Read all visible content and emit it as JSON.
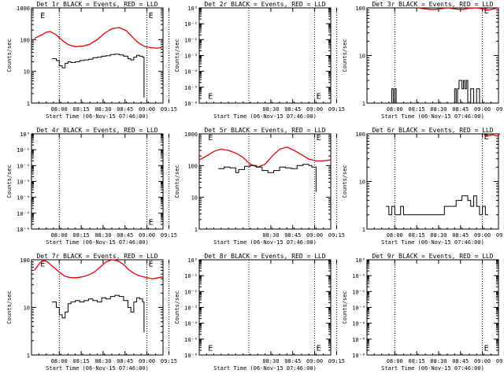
{
  "colors": {
    "events": "#000000",
    "lld": "#e00000",
    "axis": "#000000",
    "background": "#ffffff"
  },
  "shared": {
    "xlabel": "Start Time (06-Nov-15 07:46:00)",
    "ylabel": "Counts/sec",
    "marker": "E",
    "x_range_minutes": [
      -5,
      85
    ],
    "x_tick_minutes": [
      14,
      29,
      44,
      59,
      74,
      89
    ],
    "x_tick_labels": [
      "08:00",
      "08:15",
      "08:30",
      "08:45",
      "09:00",
      "09:15"
    ],
    "y_tick_labels_standard": [
      "1",
      "10",
      "100",
      "1000"
    ],
    "y_tick_labels_small": [
      "10⁰",
      "10⁻¹",
      "10⁻²",
      "10⁻³",
      "10⁻⁴",
      "10⁻⁵",
      "10⁻⁶"
    ]
  },
  "chart_data": [
    {
      "id": "1r",
      "title": "Det 1r BLACK = Events, RED = LLD",
      "type": "line",
      "ylog": true,
      "ylim": [
        1,
        1000
      ],
      "yticks": "standard",
      "x_tick_labels": [
        "08:00",
        "08:15",
        "08:30",
        "08:45",
        "09:00",
        "09:15"
      ],
      "dotted_lines_minutes": [
        14,
        74,
        89
      ],
      "marker": {
        "x": 0,
        "y": 600,
        "x2": 74,
        "y2": 600
      },
      "series": [
        {
          "name": "RED = LLD",
          "color": "red",
          "x": [
            -3,
            2,
            5,
            8,
            12,
            16,
            20,
            25,
            30,
            35,
            40,
            45,
            50,
            55,
            60,
            64,
            68,
            72,
            76,
            80,
            84
          ],
          "y": [
            110,
            140,
            170,
            180,
            140,
            95,
            70,
            60,
            62,
            72,
            100,
            160,
            220,
            240,
            190,
            120,
            80,
            62,
            56,
            54,
            56
          ]
        },
        {
          "name": "BLACK = Events",
          "color": "black",
          "x": [
            9,
            12,
            14,
            16,
            18,
            20,
            22,
            25,
            28,
            31,
            34,
            37,
            40,
            43,
            46,
            49,
            52,
            55,
            58,
            61,
            63,
            65,
            67,
            69,
            71,
            72
          ],
          "y": [
            25,
            22,
            15,
            13,
            18,
            20,
            19,
            20,
            22,
            23,
            24,
            27,
            28,
            30,
            31,
            34,
            35,
            33,
            30,
            25,
            23,
            28,
            32,
            30,
            28,
            1.5
          ]
        }
      ]
    },
    {
      "id": "2r",
      "title": "Det 2r BLACK = Events, RED = LLD",
      "type": "line",
      "ylog": true,
      "ylim": [
        1e-06,
        1
      ],
      "yticks": "small",
      "x_tick_labels": [
        "08:30",
        "08:45",
        "09:00",
        "09:15"
      ],
      "dotted_lines_minutes": [
        29,
        74,
        89
      ],
      "marker": {
        "x": 0,
        "y": 3e-06,
        "x2": 74,
        "y2": 3e-06
      },
      "series": []
    },
    {
      "id": "3r",
      "title": "Det 3r BLACK = Events, RED = LLD",
      "type": "line",
      "ylog": true,
      "ylim": [
        1,
        100
      ],
      "yticks": "standard",
      "x_tick_labels": [
        "08:00",
        "08:15",
        "08:30",
        "08:45",
        "09:00",
        "09:15"
      ],
      "dotted_lines_minutes": [
        14,
        74,
        89
      ],
      "marker": {
        "x": 74,
        "y": 90
      },
      "series": [
        {
          "name": "RED = LLD",
          "color": "red",
          "x": [
            30,
            35,
            40,
            45,
            50,
            55,
            60,
            65,
            70,
            74,
            78,
            82,
            85
          ],
          "y": [
            100,
            95,
            92,
            95,
            100,
            95,
            92,
            98,
            100,
            95,
            90,
            95,
            100
          ]
        },
        {
          "name": "BLACK = Events",
          "color": "black",
          "x": [
            10,
            12,
            13,
            14,
            15,
            16,
            40,
            45,
            50,
            55,
            56,
            57,
            58,
            60,
            61,
            62,
            63,
            64,
            66,
            68,
            70,
            72,
            73
          ],
          "y": [
            1,
            2,
            1,
            2,
            1,
            1,
            1,
            1,
            1,
            2,
            1,
            2,
            3,
            2,
            3,
            2,
            3,
            1,
            2,
            1,
            2,
            1,
            1
          ]
        }
      ]
    },
    {
      "id": "4r",
      "title": "Det 4r BLACK = Events, RED = LLD",
      "type": "line",
      "ylog": true,
      "ylim": [
        1e-06,
        1
      ],
      "yticks": "small",
      "x_tick_labels": [
        "08:00",
        "08:15",
        "08:30",
        "08:45",
        "09:00",
        "09:15"
      ],
      "dotted_lines_minutes": [
        14,
        74,
        89
      ],
      "marker": {
        "x": 74,
        "y": 3e-06
      },
      "series": []
    },
    {
      "id": "5r",
      "title": "Det 5r BLACK = Events, RED = LLD",
      "type": "line",
      "ylog": true,
      "ylim": [
        1,
        1000
      ],
      "yticks": "standard",
      "x_tick_labels": [
        "08:30",
        "08:45",
        "09:00",
        "09:15"
      ],
      "dotted_lines_minutes": [
        29,
        74,
        89
      ],
      "marker": {
        "x": 0,
        "y": 800,
        "x2": 74,
        "y2": 800
      },
      "series": [
        {
          "name": "RED = LLD",
          "color": "red",
          "x": [
            -5,
            0,
            5,
            10,
            15,
            20,
            25,
            30,
            35,
            40,
            45,
            50,
            55,
            60,
            65,
            70,
            75,
            80,
            85
          ],
          "y": [
            150,
            200,
            280,
            330,
            300,
            250,
            180,
            110,
            90,
            110,
            200,
            330,
            380,
            300,
            220,
            160,
            140,
            140,
            150
          ]
        },
        {
          "name": "BLACK = Events",
          "color": "black",
          "x": [
            8,
            12,
            16,
            20,
            22,
            26,
            30,
            34,
            38,
            42,
            46,
            50,
            54,
            58,
            62,
            66,
            70,
            72,
            75
          ],
          "y": [
            80,
            90,
            85,
            60,
            75,
            95,
            100,
            90,
            70,
            60,
            70,
            90,
            85,
            80,
            100,
            110,
            100,
            90,
            15
          ]
        }
      ]
    },
    {
      "id": "6r",
      "title": "Det 6r BLACK = Events, RED = LLD",
      "type": "line",
      "ylog": true,
      "ylim": [
        1,
        100
      ],
      "yticks": "standard",
      "x_tick_labels": [
        "08:00",
        "08:15",
        "08:30",
        "08:45",
        "09:00",
        "09:15"
      ],
      "dotted_lines_minutes": [
        14,
        74,
        89
      ],
      "marker": {
        "x": 74,
        "y": 90
      },
      "series": [
        {
          "name": "RED = LLD",
          "color": "red",
          "x": [
            75,
            78,
            81,
            84,
            86
          ],
          "y": [
            95,
            92,
            95,
            90,
            100
          ]
        },
        {
          "name": "BLACK = Events",
          "color": "black",
          "x": [
            8,
            10,
            12,
            14,
            16,
            18,
            20,
            24,
            28,
            32,
            36,
            40,
            44,
            48,
            52,
            56,
            60,
            64,
            66,
            68,
            70,
            72,
            74,
            76,
            78
          ],
          "y": [
            3,
            2,
            3,
            2,
            2,
            3,
            2,
            2,
            2,
            2,
            2,
            2,
            2,
            3,
            3,
            4,
            5,
            4,
            3,
            5,
            3,
            2,
            3,
            2,
            2
          ]
        }
      ]
    },
    {
      "id": "7r",
      "title": "Det 7r BLACK = Events, RED = LLD",
      "type": "line",
      "ylog": true,
      "ylim": [
        1,
        100
      ],
      "yticks": "standard",
      "x_tick_labels": [
        "08:00",
        "08:15",
        "08:30",
        "08:45",
        "09:00",
        "09:15"
      ],
      "dotted_lines_minutes": [
        14,
        74,
        89
      ],
      "marker": {
        "x": 0,
        "y": 85,
        "x2": 74,
        "y2": 85
      },
      "series": [
        {
          "name": "RED = LLD",
          "color": "red",
          "x": [
            -3,
            0,
            3,
            6,
            10,
            14,
            18,
            22,
            26,
            30,
            34,
            38,
            42,
            46,
            50,
            54,
            58,
            62,
            66,
            70,
            74,
            78,
            82,
            85
          ],
          "y": [
            60,
            80,
            100,
            90,
            70,
            55,
            45,
            42,
            42,
            44,
            48,
            55,
            70,
            90,
            100,
            95,
            80,
            60,
            50,
            45,
            42,
            40,
            42,
            44
          ]
        },
        {
          "name": "BLACK = Events",
          "color": "black",
          "x": [
            9,
            12,
            14,
            16,
            18,
            20,
            22,
            25,
            28,
            31,
            34,
            37,
            40,
            43,
            46,
            49,
            52,
            55,
            58,
            61,
            63,
            65,
            67,
            69,
            71,
            72
          ],
          "y": [
            13,
            10,
            7,
            6,
            8,
            12,
            13,
            14,
            13,
            14,
            15,
            14,
            13,
            16,
            15,
            17,
            18,
            17,
            14,
            10,
            8,
            13,
            16,
            15,
            13,
            3
          ]
        }
      ]
    },
    {
      "id": "8r",
      "title": "Det 8r BLACK = Events, RED = LLD",
      "type": "line",
      "ylog": true,
      "ylim": [
        1e-06,
        1
      ],
      "yticks": "small",
      "x_tick_labels": [
        "08:30",
        "08:45",
        "09:00",
        "09:15"
      ],
      "dotted_lines_minutes": [
        29,
        74,
        89
      ],
      "marker": {
        "x": 0,
        "y": 3e-06,
        "x2": 74,
        "y2": 3e-06
      },
      "series": []
    },
    {
      "id": "9r",
      "title": "Det 9r BLACK = Events, RED = LLD",
      "type": "line",
      "ylog": true,
      "ylim": [
        1e-06,
        1
      ],
      "yticks": "small",
      "x_tick_labels": [
        "08:00",
        "08:15",
        "08:30",
        "08:45",
        "09:00",
        "09:15"
      ],
      "dotted_lines_minutes": [
        14,
        74,
        89
      ],
      "marker": {
        "x": 74,
        "y": 3e-06
      },
      "series": []
    }
  ]
}
